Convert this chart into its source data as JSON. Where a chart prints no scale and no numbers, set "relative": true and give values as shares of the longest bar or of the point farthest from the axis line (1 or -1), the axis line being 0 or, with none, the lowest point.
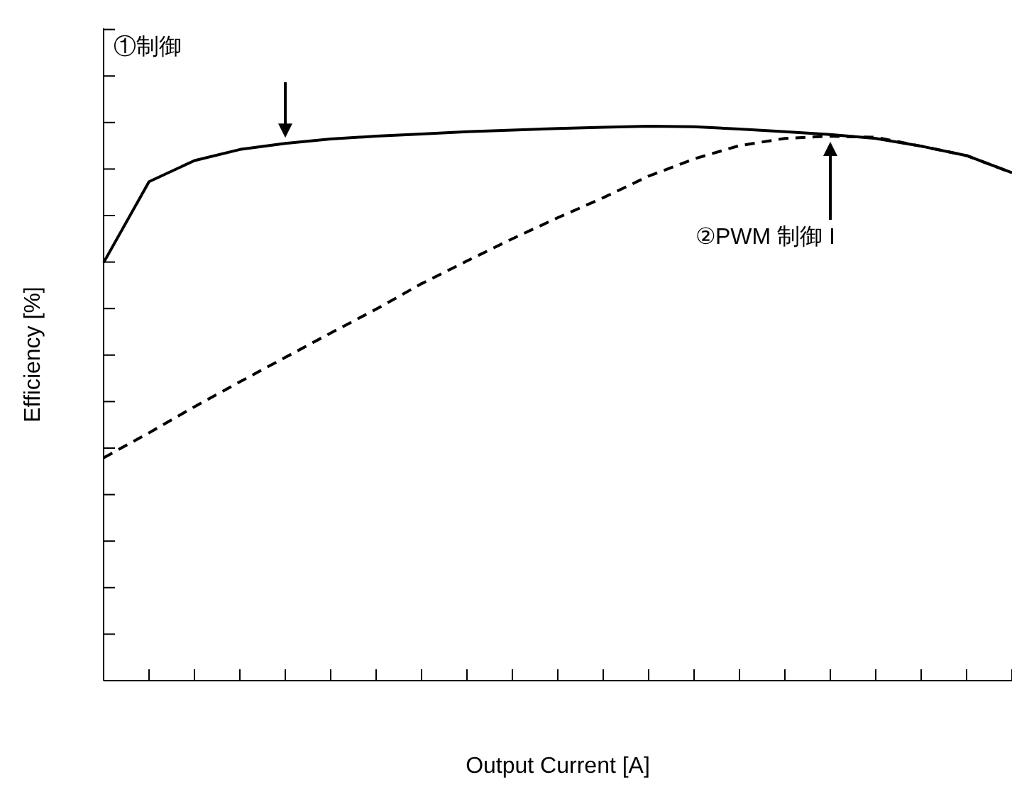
{
  "chart_data": {
    "type": "line",
    "relative": true,
    "xlabel": "Output Current [A]",
    "ylabel": "Efficiency [%]",
    "categories": [
      null,
      null,
      null,
      null,
      null,
      null,
      null,
      null,
      null,
      null,
      null,
      null,
      null,
      null,
      null,
      null,
      null,
      null,
      null,
      null,
      null
    ],
    "series": [
      {
        "name": "①制御",
        "color": "#000000",
        "line_style": "solid",
        "values": [
          0.754,
          0.9,
          0.938,
          0.958,
          0.969,
          0.977,
          0.982,
          0.986,
          0.99,
          0.993,
          0.996,
          0.998,
          1.0,
          0.999,
          0.995,
          0.99,
          0.985,
          0.978,
          0.964,
          0.947,
          0.916
        ]
      },
      {
        "name": "②PWM 制御 I",
        "color": "#000000",
        "line_style": "dashed",
        "values": [
          0.402,
          0.447,
          0.494,
          0.539,
          0.583,
          0.627,
          0.67,
          0.716,
          0.757,
          0.797,
          0.835,
          0.871,
          0.91,
          0.941,
          0.965,
          0.978,
          0.982,
          0.98,
          0.964,
          0.947,
          0.916
        ]
      }
    ]
  }
}
